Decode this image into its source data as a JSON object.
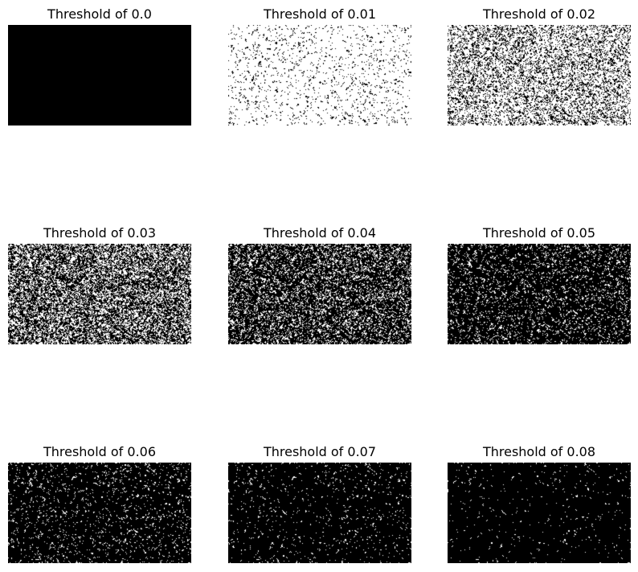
{
  "figure": {
    "panels": [
      {
        "title": "Threshold of 0.0",
        "threshold": 0.0,
        "white_fraction": 0.0
      },
      {
        "title": "Threshold of 0.01",
        "threshold": 0.01,
        "white_fraction": 0.93
      },
      {
        "title": "Threshold of 0.02",
        "threshold": 0.02,
        "white_fraction": 0.7
      },
      {
        "title": "Threshold of 0.03",
        "threshold": 0.03,
        "white_fraction": 0.42
      },
      {
        "title": "Threshold of 0.04",
        "threshold": 0.04,
        "white_fraction": 0.25
      },
      {
        "title": "Threshold of 0.05",
        "threshold": 0.05,
        "white_fraction": 0.13
      },
      {
        "title": "Threshold of 0.06",
        "threshold": 0.06,
        "white_fraction": 0.07
      },
      {
        "title": "Threshold of 0.07",
        "threshold": 0.07,
        "white_fraction": 0.04
      },
      {
        "title": "Threshold of 0.08",
        "threshold": 0.08,
        "white_fraction": 0.02
      }
    ]
  },
  "colors": {
    "background": "#ffffff",
    "on_pixel": "#ffffff",
    "off_pixel": "#000000",
    "title_text": "#000000"
  }
}
